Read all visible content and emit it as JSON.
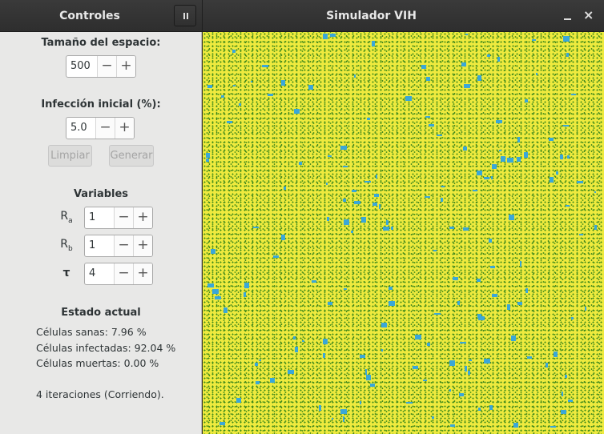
{
  "window": {
    "sidebar_title": "Controles",
    "title": "Simulador VIH",
    "pause_icon": "pause-icon",
    "minimize_icon": "minimize-icon",
    "close_icon": "close-icon",
    "close_glyph": "×"
  },
  "controls": {
    "space_size_label": "Tamaño del espacio:",
    "space_size_value": "500",
    "infection_label": "Infección inicial (%):",
    "infection_value": "5.0",
    "minus": "−",
    "plus": "+",
    "clear_button": "Limpiar",
    "generate_button": "Generar"
  },
  "variables": {
    "heading": "Variables",
    "items": [
      {
        "symbol": "R",
        "sub": "a",
        "value": "1"
      },
      {
        "symbol": "R",
        "sub": "b",
        "value": "1"
      },
      {
        "symbol": "τ",
        "sub": "",
        "value": "4"
      }
    ]
  },
  "status": {
    "heading": "Estado actual",
    "healthy": "Células sanas: 7.96 %",
    "infected": "Células infectadas: 92.04 %",
    "dead": "Células muertas: 0.00 %",
    "iterations": "4 iteraciones (Corriendo)."
  },
  "colors": {
    "healthy_cells": "#3f8a1a",
    "infected_cells": "#eeea3e",
    "dead_cells": "#3aa7d8"
  }
}
